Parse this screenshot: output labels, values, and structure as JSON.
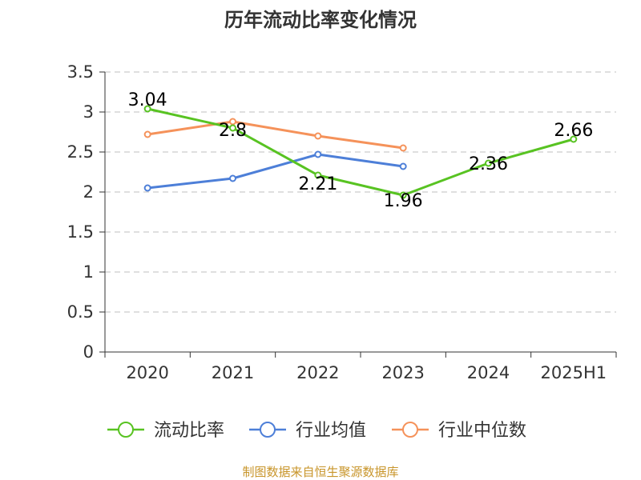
{
  "chart_data": {
    "type": "line",
    "title": "历年流动比率变化情况",
    "categories": [
      "2020",
      "2021",
      "2022",
      "2023",
      "2024",
      "2025H1"
    ],
    "ylim": [
      0,
      3.5
    ],
    "yticks": [
      "0",
      "0.5",
      "1",
      "1.5",
      "2",
      "2.5",
      "3",
      "3.5"
    ],
    "grid": true,
    "legend_position": "bottom",
    "series": [
      {
        "name": "流动比率",
        "color": "#58c322",
        "values": [
          3.04,
          2.8,
          2.21,
          1.96,
          2.36,
          2.66
        ],
        "labels": [
          "3.04",
          "2.8",
          "2.21",
          "1.96",
          "2.36",
          "2.66"
        ]
      },
      {
        "name": "行业均值",
        "color": "#4d7fd8",
        "values": [
          2.05,
          2.17,
          2.47,
          2.32,
          null,
          null
        ]
      },
      {
        "name": "行业中位数",
        "color": "#f5925a",
        "values": [
          2.72,
          2.88,
          2.7,
          2.55,
          null,
          null
        ]
      }
    ]
  },
  "source": {
    "text": "制图数据来自恒生聚源数据库",
    "color": "#c8952a"
  }
}
